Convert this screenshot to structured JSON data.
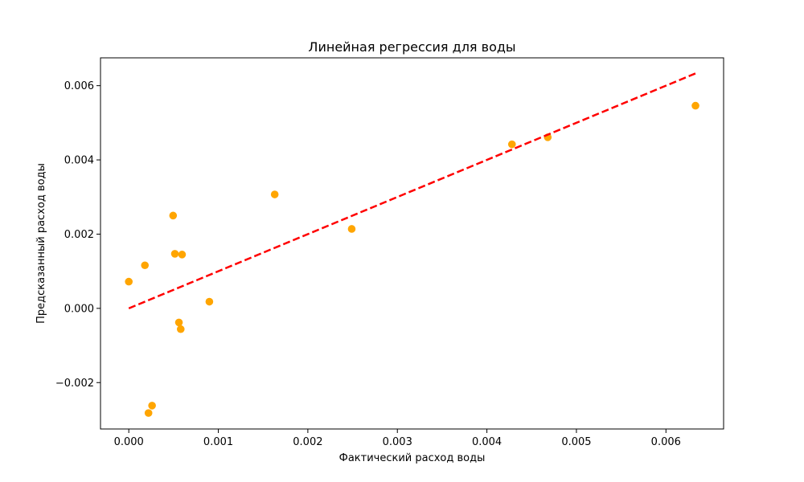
{
  "chart_data": {
    "type": "scatter",
    "title": "Линейная регрессия для воды",
    "xlabel": "Фактический расход воды",
    "ylabel": "Предсказанный расход воды",
    "xlim": [
      -0.000316,
      0.006644
    ],
    "ylim": [
      -0.00325,
      0.00675
    ],
    "x_ticks": [
      0.0,
      0.001,
      0.002,
      0.003,
      0.004,
      0.005,
      0.006
    ],
    "x_tick_labels": [
      "0.000",
      "0.001",
      "0.002",
      "0.003",
      "0.004",
      "0.005",
      "0.006"
    ],
    "y_ticks": [
      -0.002,
      0.0,
      0.002,
      0.004,
      0.006
    ],
    "y_tick_labels": [
      "−0.002",
      "0.000",
      "0.002",
      "0.004",
      "0.006"
    ],
    "grid": false,
    "point_color": "#ffa500",
    "line_color": "#ff0000",
    "points": [
      {
        "x": 0.0,
        "y": 0.00072
      },
      {
        "x": 0.00018,
        "y": 0.00116
      },
      {
        "x": 0.00022,
        "y": -0.00282
      },
      {
        "x": 0.00026,
        "y": -0.00262
      },
      {
        "x": 0.000495,
        "y": 0.0025
      },
      {
        "x": 0.000515,
        "y": 0.00147
      },
      {
        "x": 0.00056,
        "y": -0.00038
      },
      {
        "x": 0.00058,
        "y": -0.00056
      },
      {
        "x": 0.000595,
        "y": 0.00145
      },
      {
        "x": 0.0009,
        "y": 0.00018
      },
      {
        "x": 0.00163,
        "y": 0.00307
      },
      {
        "x": 0.00249,
        "y": 0.00214
      },
      {
        "x": 0.00428,
        "y": 0.00442
      },
      {
        "x": 0.00468,
        "y": 0.00461
      },
      {
        "x": 0.00633,
        "y": 0.00546
      }
    ],
    "regression_line": {
      "x": [
        0.0,
        0.00633
      ],
      "y": [
        0.0,
        0.00633
      ],
      "style": "dashed"
    }
  }
}
